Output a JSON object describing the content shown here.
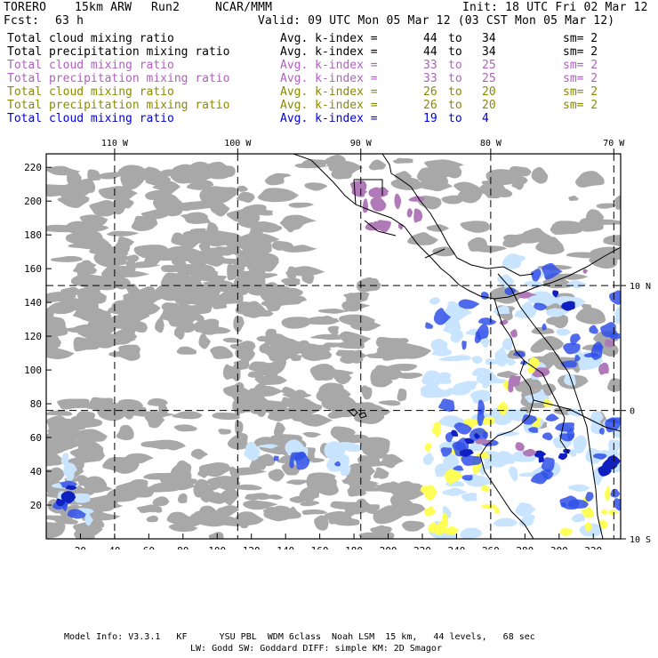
{
  "header": {
    "model": "TORERO",
    "resolution": "15km ARW",
    "run": "Run2",
    "org": "NCAR/MMM",
    "init": "Init: 18 UTC Fri 02 Mar 12",
    "fcst_label": "Fcst:",
    "fcst_value": "63 h",
    "valid": "Valid: 09 UTC Mon 05 Mar 12 (03 CST Mon 05 Mar 12)"
  },
  "fields": [
    {
      "name": "Total cloud mixing ratio",
      "avg": "Avg. k-index =",
      "from": "44",
      "to_word": "to",
      "to": "34",
      "sm": "sm= 2",
      "color": "#000000"
    },
    {
      "name": "Total precipitation mixing ratio",
      "avg": "Avg. k-index =",
      "from": "44",
      "to_word": "to",
      "to": "34",
      "sm": "sm= 2",
      "color": "#000000"
    },
    {
      "name": "Total cloud mixing ratio",
      "avg": "Avg. k-index =",
      "from": "33",
      "to_word": "to",
      "to": "25",
      "sm": "sm= 2",
      "color": "#b060c0"
    },
    {
      "name": "Total precipitation mixing ratio",
      "avg": "Avg. k-index =",
      "from": "33",
      "to_word": "to",
      "to": "25",
      "sm": "sm= 2",
      "color": "#b060c0"
    },
    {
      "name": "Total cloud mixing ratio",
      "avg": "Avg. k-index =",
      "from": "26",
      "to_word": "to",
      "to": "20",
      "sm": "sm= 2",
      "color": "#8a8a00"
    },
    {
      "name": "Total precipitation mixing ratio",
      "avg": "Avg. k-index =",
      "from": "26",
      "to_word": "to",
      "to": "20",
      "sm": "sm= 2",
      "color": "#8a8a00"
    },
    {
      "name": "Total cloud mixing ratio",
      "avg": "Avg. k-index =",
      "from": "19",
      "to_word": "to",
      "to": "4",
      "sm": "",
      "color": "#0000dd"
    }
  ],
  "map": {
    "x_grid_ticks": [
      20,
      40,
      60,
      80,
      100,
      120,
      140,
      160,
      180,
      200,
      220,
      240,
      260,
      280,
      300,
      320
    ],
    "y_grid_ticks": [
      20,
      40,
      60,
      80,
      100,
      120,
      140,
      160,
      180,
      200,
      220
    ],
    "x_grid_range": [
      0,
      336
    ],
    "y_grid_range": [
      0,
      228
    ],
    "longitude_labels": [
      {
        "text": "110 W",
        "grid_x": 40
      },
      {
        "text": "100 W",
        "grid_x": 112
      },
      {
        "text": "90 W",
        "grid_x": 184
      },
      {
        "text": "80 W",
        "grid_x": 260
      },
      {
        "text": "70 W",
        "grid_x": 332
      }
    ],
    "latitude_labels": [
      {
        "text": "10 N",
        "grid_y": 150
      },
      {
        "text": "0",
        "grid_y": 76
      },
      {
        "text": "10 S",
        "grid_y": 0
      }
    ],
    "colors": {
      "cloud_gray": "#a8a8a8",
      "cloud_purple": "#b07ab8",
      "cloud_yellow": "#ffff55",
      "cloud_light_blue": "#c8e4ff",
      "cloud_blue": "#3050e8",
      "cloud_deep_blue": "#1020c0",
      "coastline": "#000000"
    }
  },
  "footer": {
    "line1": "Model Info: V3.3.1   KF      YSU PBL  WDM 6class  Noah LSM  15 km,   44 levels,   68 sec",
    "line2": "LW: Godd SW: Goddard DIFF: simple KM: 2D Smagor"
  }
}
